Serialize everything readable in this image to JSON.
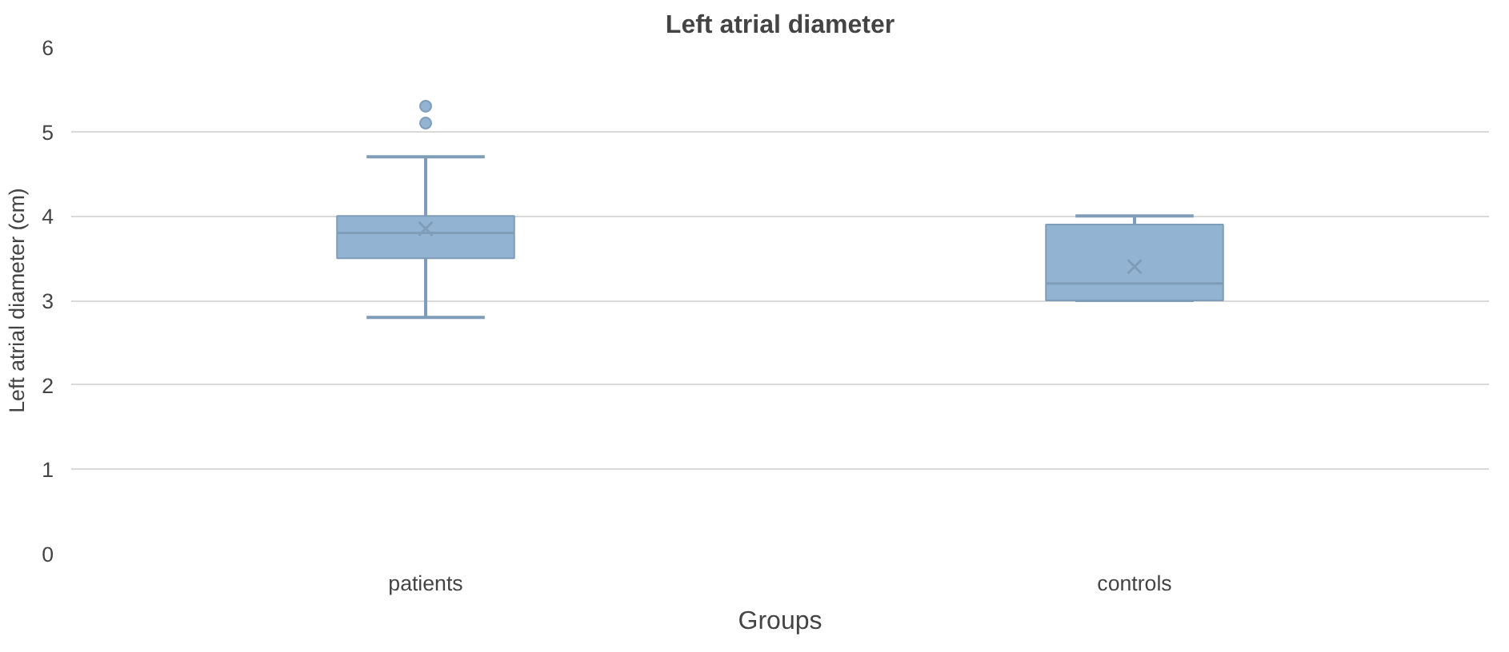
{
  "chart_data": {
    "type": "box",
    "title": "Left atrial diameter",
    "xlabel": "Groups",
    "ylabel": "Left atrial diameter (cm)",
    "categories": [
      "patients",
      "controls"
    ],
    "boxes": [
      {
        "low": 2.8,
        "q1": 3.5,
        "median": 3.8,
        "q3": 4.0,
        "high": 4.7,
        "mean": 3.85,
        "outliers": [
          5.1,
          5.3
        ]
      },
      {
        "low": 3.0,
        "q1": 3.0,
        "median": 3.2,
        "q3": 3.9,
        "high": 4.0,
        "mean": 3.4
      }
    ],
    "color": "#93b3d3",
    "ylim": [
      0,
      6
    ],
    "yticks": [
      0,
      1,
      2,
      3,
      4,
      5,
      6
    ],
    "grid": "y"
  }
}
